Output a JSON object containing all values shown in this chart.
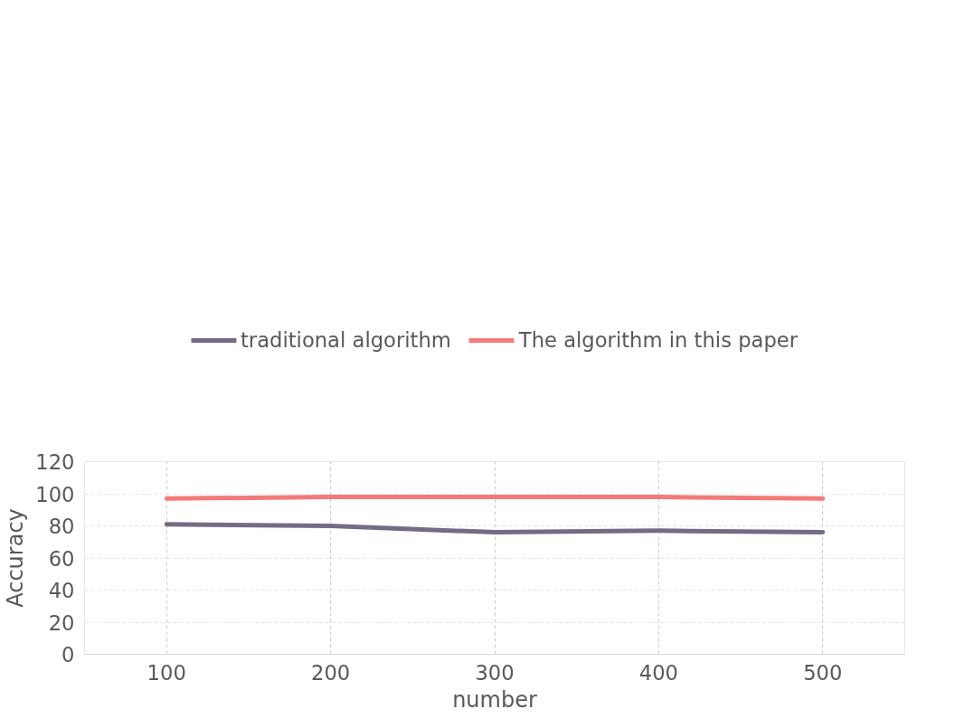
{
  "chart_data": {
    "type": "line",
    "xlabel": "number",
    "ylabel": "Accuracy",
    "categories": [
      "100",
      "200",
      "300",
      "400",
      "500"
    ],
    "series": [
      {
        "name": "traditional algorithm",
        "color": "#756b86",
        "values": [
          81,
          80,
          76,
          77,
          76
        ]
      },
      {
        "name": "The algorithm in this paper",
        "color": "#f47a7a",
        "values": [
          97,
          98,
          98,
          98,
          97
        ]
      }
    ],
    "ylim": [
      0,
      120
    ],
    "yticks": [
      0,
      20,
      40,
      60,
      80,
      100,
      120
    ],
    "grid": true,
    "legend": "top",
    "line_style": "solid",
    "marker": "none"
  }
}
